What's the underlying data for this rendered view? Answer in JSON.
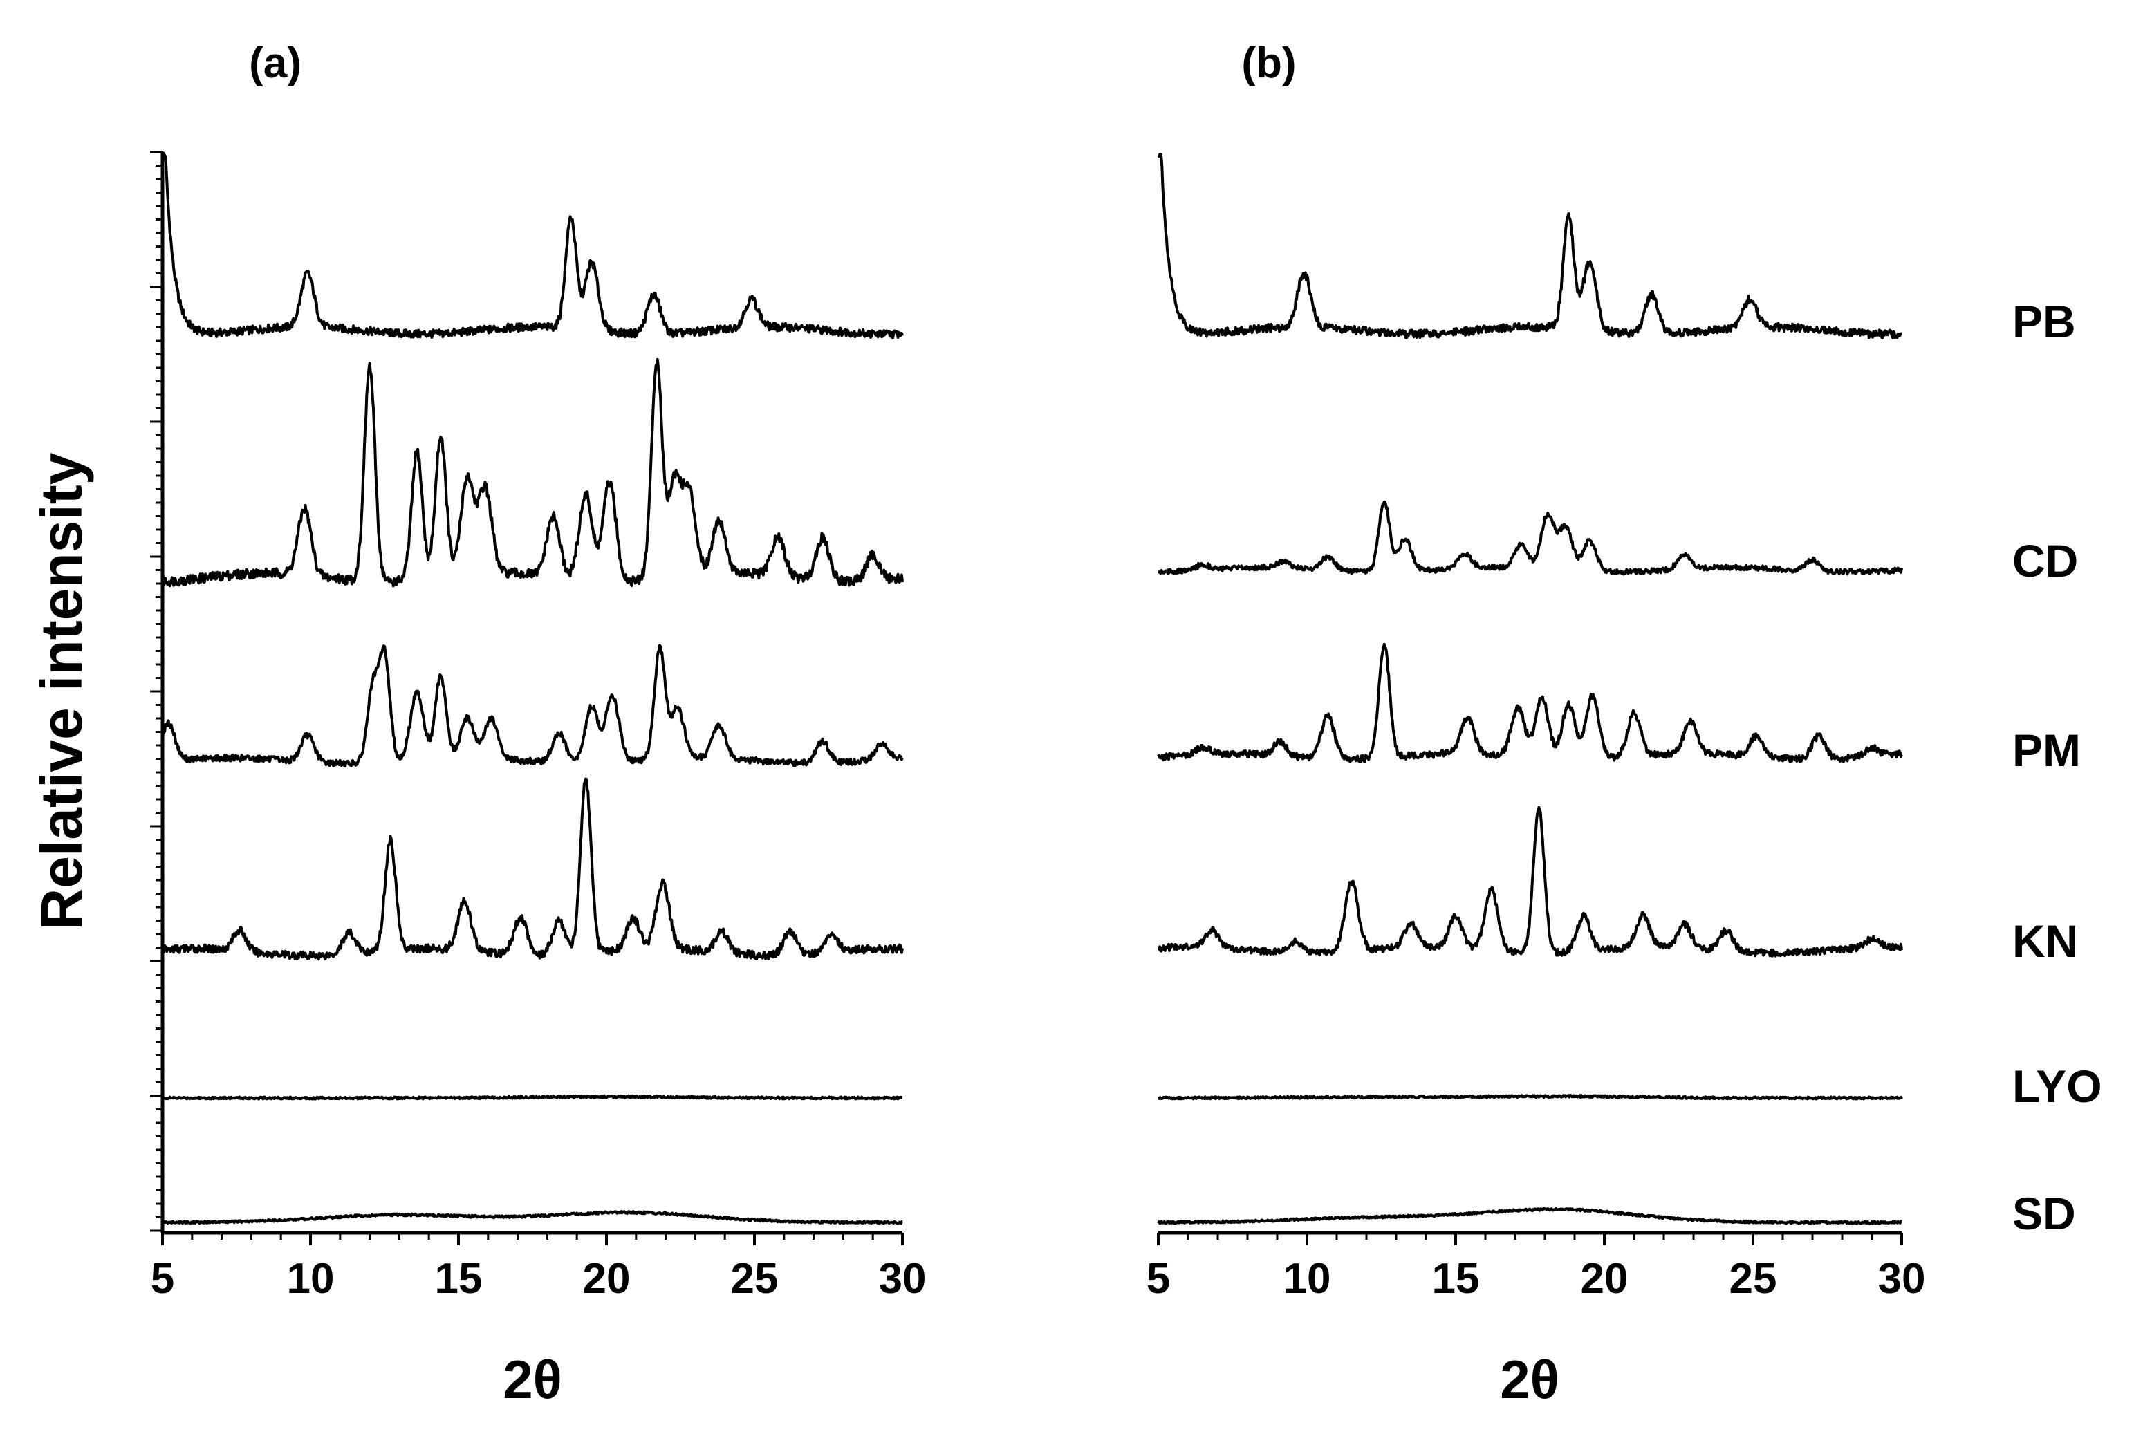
{
  "chart_data": [
    {
      "type": "line",
      "panel_label": "(a)",
      "xlabel": "2θ",
      "ylabel": "Relative intensity",
      "xlim": [
        5,
        30
      ],
      "xticks": [
        5,
        10,
        15,
        20,
        25,
        30
      ],
      "y_ticks_labeled": false,
      "grid": false,
      "series": [
        {
          "name": "PB",
          "peaks": [
            [
              5.1,
              1.0
            ],
            [
              9.9,
              0.3
            ],
            [
              18.8,
              0.62
            ],
            [
              19.5,
              0.38
            ],
            [
              21.6,
              0.22
            ],
            [
              24.9,
              0.16
            ]
          ]
        },
        {
          "name": "CD",
          "peaks": [
            [
              9.8,
              0.31
            ],
            [
              12.0,
              1.0
            ],
            [
              13.6,
              0.6
            ],
            [
              14.4,
              0.66
            ],
            [
              15.3,
              0.45
            ],
            [
              15.9,
              0.4
            ],
            [
              18.2,
              0.28
            ],
            [
              19.3,
              0.4
            ],
            [
              20.1,
              0.46
            ],
            [
              21.7,
              1.0
            ],
            [
              22.3,
              0.45
            ],
            [
              22.8,
              0.38
            ],
            [
              23.8,
              0.25
            ],
            [
              25.8,
              0.18
            ],
            [
              27.3,
              0.2
            ],
            [
              29.0,
              0.12
            ]
          ]
        },
        {
          "name": "PM",
          "peaks": [
            [
              5.2,
              0.28
            ],
            [
              9.9,
              0.2
            ],
            [
              12.1,
              0.55
            ],
            [
              12.5,
              0.8
            ],
            [
              13.6,
              0.5
            ],
            [
              14.4,
              0.62
            ],
            [
              15.3,
              0.3
            ],
            [
              16.1,
              0.3
            ],
            [
              18.4,
              0.22
            ],
            [
              19.5,
              0.42
            ],
            [
              20.2,
              0.5
            ],
            [
              21.8,
              0.82
            ],
            [
              22.4,
              0.38
            ],
            [
              23.8,
              0.25
            ],
            [
              27.3,
              0.16
            ],
            [
              29.3,
              0.12
            ]
          ]
        },
        {
          "name": "KN",
          "peaks": [
            [
              7.6,
              0.12
            ],
            [
              11.3,
              0.12
            ],
            [
              12.7,
              0.64
            ],
            [
              15.2,
              0.28
            ],
            [
              17.1,
              0.22
            ],
            [
              18.4,
              0.2
            ],
            [
              19.3,
              1.0
            ],
            [
              20.9,
              0.18
            ],
            [
              21.9,
              0.38
            ],
            [
              23.9,
              0.12
            ],
            [
              26.2,
              0.14
            ],
            [
              27.6,
              0.1
            ]
          ]
        },
        {
          "name": "LYO",
          "peaks": [
            [
              20.0,
              0.03
            ]
          ]
        },
        {
          "name": "SD",
          "peaks": [
            [
              13.0,
              0.18
            ],
            [
              20.7,
              0.24
            ]
          ]
        }
      ]
    },
    {
      "type": "line",
      "panel_label": "(b)",
      "xlabel": "2θ",
      "xlim": [
        5,
        30
      ],
      "xticks": [
        5,
        10,
        15,
        20,
        25,
        30
      ],
      "y_ticks_labeled": false,
      "grid": false,
      "series": [
        {
          "name": "PB",
          "peaks": [
            [
              5.1,
              1.0
            ],
            [
              9.9,
              0.3
            ],
            [
              18.8,
              0.62
            ],
            [
              19.5,
              0.38
            ],
            [
              21.6,
              0.22
            ],
            [
              24.9,
              0.16
            ]
          ]
        },
        {
          "name": "CD",
          "peaks": [
            [
              6.5,
              0.05
            ],
            [
              9.2,
              0.06
            ],
            [
              10.7,
              0.12
            ],
            [
              12.6,
              0.65
            ],
            [
              13.3,
              0.3
            ],
            [
              15.3,
              0.14
            ],
            [
              17.2,
              0.22
            ],
            [
              18.1,
              0.5
            ],
            [
              18.7,
              0.4
            ],
            [
              19.5,
              0.28
            ],
            [
              22.7,
              0.14
            ],
            [
              27.0,
              0.1
            ]
          ]
        },
        {
          "name": "PM",
          "peaks": [
            [
              6.5,
              0.05
            ],
            [
              9.1,
              0.1
            ],
            [
              10.7,
              0.3
            ],
            [
              12.6,
              0.78
            ],
            [
              15.4,
              0.25
            ],
            [
              17.1,
              0.34
            ],
            [
              17.9,
              0.42
            ],
            [
              18.8,
              0.38
            ],
            [
              19.6,
              0.44
            ],
            [
              21.0,
              0.3
            ],
            [
              22.9,
              0.22
            ],
            [
              25.1,
              0.14
            ],
            [
              27.2,
              0.16
            ],
            [
              29.0,
              0.06
            ]
          ]
        },
        {
          "name": "KN",
          "peaks": [
            [
              6.8,
              0.12
            ],
            [
              9.6,
              0.08
            ],
            [
              11.5,
              0.48
            ],
            [
              13.5,
              0.16
            ],
            [
              15.0,
              0.22
            ],
            [
              16.2,
              0.42
            ],
            [
              17.8,
              1.0
            ],
            [
              19.3,
              0.24
            ],
            [
              21.3,
              0.22
            ],
            [
              22.7,
              0.16
            ],
            [
              24.1,
              0.14
            ],
            [
              29.0,
              0.06
            ]
          ]
        },
        {
          "name": "LYO",
          "peaks": [
            [
              12.0,
              0.02
            ],
            [
              18.5,
              0.04
            ]
          ]
        },
        {
          "name": "SD",
          "peaks": [
            [
              12.2,
              0.11
            ],
            [
              18.4,
              0.31
            ]
          ]
        }
      ]
    }
  ]
}
